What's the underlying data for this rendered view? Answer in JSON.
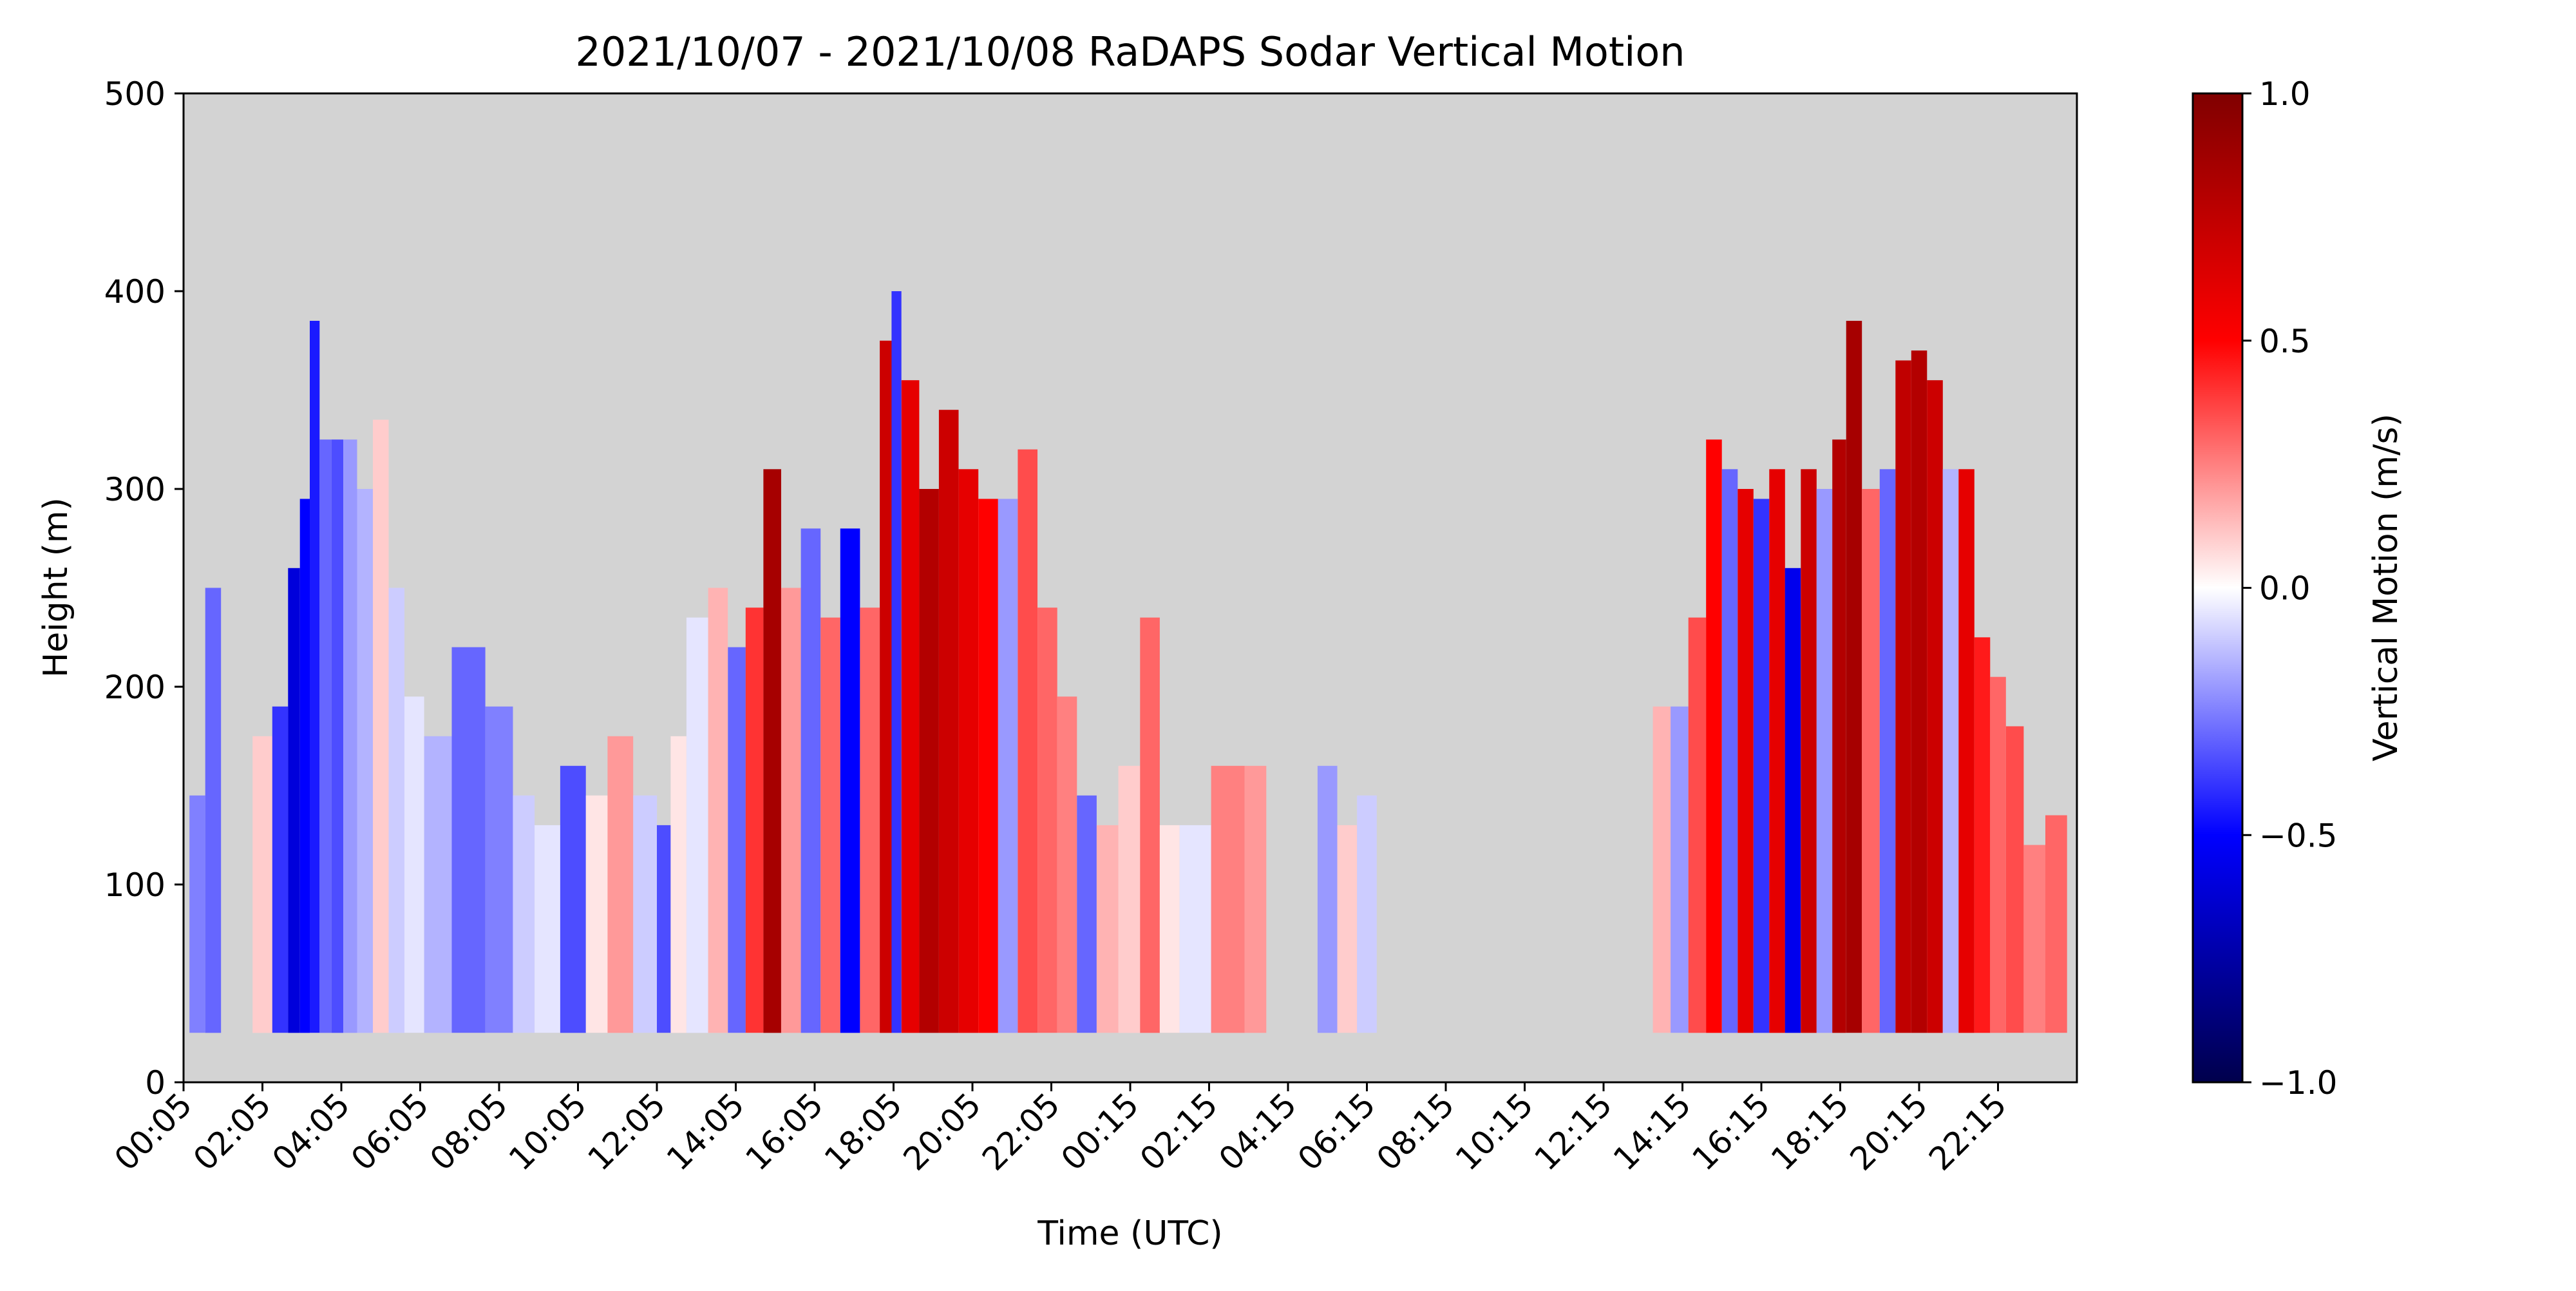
{
  "chart_data": {
    "type": "heatmap",
    "title": "2021/10/07 - 2021/10/08 RaDAPS Sodar Vertical Motion",
    "xlabel": "Time (UTC)",
    "ylabel": "Height (m)",
    "colorbar_label": "Vertical Motion (m/s)",
    "colormap": "seismic",
    "missing_color": "#d3d3d3",
    "x_tick_labels": [
      "00:05",
      "02:05",
      "04:05",
      "06:05",
      "08:05",
      "10:05",
      "12:05",
      "14:05",
      "16:05",
      "18:05",
      "20:05",
      "22:05",
      "00:15",
      "02:15",
      "04:15",
      "06:15",
      "08:15",
      "10:15",
      "12:15",
      "14:15",
      "16:15",
      "18:15",
      "20:15",
      "22:15"
    ],
    "x_range_hours": [
      0,
      48
    ],
    "y_ticks": [
      0,
      100,
      200,
      300,
      400,
      500
    ],
    "ylim": [
      0,
      500
    ],
    "colorbar_ticks": [
      -1.0,
      -0.5,
      0.0,
      0.5,
      1.0
    ],
    "colorbar_tick_labels": [
      "−1.0",
      "−0.5",
      "0.0",
      "0.5",
      "1.0"
    ],
    "clim": [
      -1.0,
      1.0
    ],
    "height_min_m": 25,
    "profiles": [
      {
        "t": 0.4,
        "top": 145,
        "w": -0.25
      },
      {
        "t": 0.7,
        "top": 250,
        "w": -0.3
      },
      {
        "t": 2.0,
        "top": 175,
        "w": 0.1
      },
      {
        "t": 2.5,
        "top": 190,
        "w": -0.4
      },
      {
        "t": 2.8,
        "top": 260,
        "w": -0.6
      },
      {
        "t": 3.1,
        "top": 295,
        "w": -0.5
      },
      {
        "t": 3.3,
        "top": 385,
        "w": -0.45
      },
      {
        "t": 3.6,
        "top": 325,
        "w": -0.3
      },
      {
        "t": 3.9,
        "top": 325,
        "w": -0.35
      },
      {
        "t": 4.2,
        "top": 325,
        "w": -0.2
      },
      {
        "t": 4.6,
        "top": 300,
        "w": -0.15
      },
      {
        "t": 5.0,
        "top": 335,
        "w": 0.1
      },
      {
        "t": 5.4,
        "top": 250,
        "w": -0.1
      },
      {
        "t": 5.8,
        "top": 195,
        "w": -0.05
      },
      {
        "t": 6.4,
        "top": 175,
        "w": -0.15
      },
      {
        "t": 7.2,
        "top": 220,
        "w": -0.3
      },
      {
        "t": 8.1,
        "top": 190,
        "w": -0.25
      },
      {
        "t": 8.6,
        "top": 145,
        "w": -0.1
      },
      {
        "t": 9.2,
        "top": 130,
        "w": -0.05
      },
      {
        "t": 9.9,
        "top": 160,
        "w": -0.35
      },
      {
        "t": 10.5,
        "top": 145,
        "w": 0.05
      },
      {
        "t": 11.0,
        "top": 175,
        "w": 0.2
      },
      {
        "t": 11.8,
        "top": 145,
        "w": -0.1
      },
      {
        "t": 12.2,
        "top": 130,
        "w": -0.35
      },
      {
        "t": 12.5,
        "top": 175,
        "w": 0.05
      },
      {
        "t": 13.0,
        "top": 235,
        "w": -0.05
      },
      {
        "t": 13.6,
        "top": 250,
        "w": 0.15
      },
      {
        "t": 14.0,
        "top": 220,
        "w": -0.3
      },
      {
        "t": 14.5,
        "top": 240,
        "w": 0.4
      },
      {
        "t": 14.9,
        "top": 310,
        "w": 0.85
      },
      {
        "t": 15.4,
        "top": 250,
        "w": 0.2
      },
      {
        "t": 15.9,
        "top": 280,
        "w": -0.3
      },
      {
        "t": 16.4,
        "top": 235,
        "w": 0.3
      },
      {
        "t": 16.9,
        "top": 280,
        "w": -0.5
      },
      {
        "t": 17.4,
        "top": 240,
        "w": 0.3
      },
      {
        "t": 17.9,
        "top": 375,
        "w": 0.7
      },
      {
        "t": 18.0,
        "top": 400,
        "w": -0.4
      },
      {
        "t": 18.4,
        "top": 355,
        "w": 0.6
      },
      {
        "t": 18.9,
        "top": 300,
        "w": 0.8
      },
      {
        "t": 19.4,
        "top": 340,
        "w": 0.7
      },
      {
        "t": 19.9,
        "top": 310,
        "w": 0.6
      },
      {
        "t": 20.4,
        "top": 295,
        "w": 0.5
      },
      {
        "t": 20.9,
        "top": 295,
        "w": -0.2
      },
      {
        "t": 21.4,
        "top": 320,
        "w": 0.35
      },
      {
        "t": 21.9,
        "top": 240,
        "w": 0.3
      },
      {
        "t": 22.4,
        "top": 195,
        "w": 0.25
      },
      {
        "t": 22.9,
        "top": 145,
        "w": -0.3
      },
      {
        "t": 23.4,
        "top": 130,
        "w": 0.15
      },
      {
        "t": 24.0,
        "top": 160,
        "w": 0.1
      },
      {
        "t": 24.5,
        "top": 235,
        "w": 0.3
      },
      {
        "t": 25.0,
        "top": 130,
        "w": 0.05
      },
      {
        "t": 25.5,
        "top": 130,
        "w": -0.05
      },
      {
        "t": 26.6,
        "top": 160,
        "w": 0.25
      },
      {
        "t": 27.2,
        "top": 160,
        "w": 0.2
      },
      {
        "t": 29.0,
        "top": 160,
        "w": -0.2
      },
      {
        "t": 29.5,
        "top": 130,
        "w": 0.1
      },
      {
        "t": 30.0,
        "top": 145,
        "w": -0.1
      },
      {
        "t": 37.5,
        "top": 190,
        "w": 0.15
      },
      {
        "t": 37.9,
        "top": 190,
        "w": -0.2
      },
      {
        "t": 38.4,
        "top": 235,
        "w": 0.35
      },
      {
        "t": 38.8,
        "top": 325,
        "w": 0.5
      },
      {
        "t": 39.2,
        "top": 310,
        "w": -0.3
      },
      {
        "t": 39.6,
        "top": 300,
        "w": 0.6
      },
      {
        "t": 40.0,
        "top": 295,
        "w": -0.4
      },
      {
        "t": 40.4,
        "top": 310,
        "w": 0.6
      },
      {
        "t": 40.8,
        "top": 260,
        "w": -0.55
      },
      {
        "t": 41.2,
        "top": 310,
        "w": 0.7
      },
      {
        "t": 41.6,
        "top": 300,
        "w": -0.2
      },
      {
        "t": 42.0,
        "top": 325,
        "w": 0.8
      },
      {
        "t": 42.3,
        "top": 385,
        "w": 0.85
      },
      {
        "t": 42.8,
        "top": 300,
        "w": 0.3
      },
      {
        "t": 43.2,
        "top": 310,
        "w": -0.3
      },
      {
        "t": 43.6,
        "top": 365,
        "w": 0.75
      },
      {
        "t": 44.0,
        "top": 370,
        "w": 0.8
      },
      {
        "t": 44.4,
        "top": 355,
        "w": 0.7
      },
      {
        "t": 44.8,
        "top": 310,
        "w": -0.15
      },
      {
        "t": 45.2,
        "top": 310,
        "w": 0.6
      },
      {
        "t": 45.6,
        "top": 225,
        "w": 0.45
      },
      {
        "t": 46.0,
        "top": 205,
        "w": 0.3
      },
      {
        "t": 46.4,
        "top": 180,
        "w": 0.35
      },
      {
        "t": 46.9,
        "top": 120,
        "w": 0.25
      },
      {
        "t": 47.5,
        "top": 135,
        "w": 0.3
      }
    ]
  }
}
